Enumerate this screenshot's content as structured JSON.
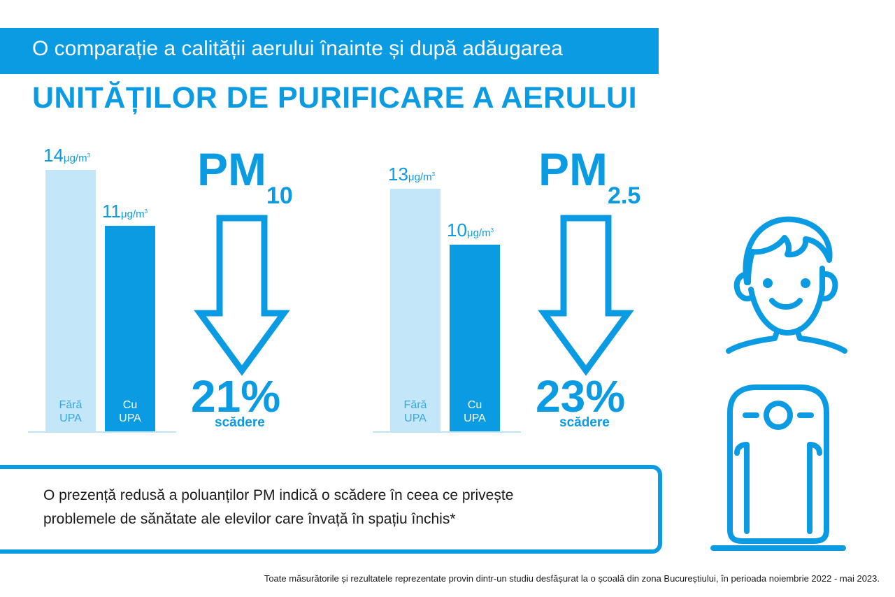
{
  "header": {
    "line1": "O comparație a calității aerului înainte și după adăugarea",
    "line2": "UNITĂȚILOR DE PURIFICARE A AERULUI"
  },
  "colors": {
    "accent": "#0b9be3",
    "light_bar": "#c3e6f8",
    "dark_bar": "#0b9be3"
  },
  "chart_data": [
    {
      "type": "bar",
      "pollutant": {
        "main": "PM",
        "sub": "10"
      },
      "categories": [
        "Fără UPA",
        "Cu UPA"
      ],
      "category_lines": [
        [
          "Fără",
          "UPA"
        ],
        [
          "Cu",
          "UPA"
        ]
      ],
      "values": [
        14,
        11
      ],
      "value_labels": [
        "14",
        "11"
      ],
      "unit": "μg/m",
      "unit_sup": "3",
      "reduction": "21%",
      "reduction_label": "scădere"
    },
    {
      "type": "bar",
      "pollutant": {
        "main": "PM",
        "sub": "2.5"
      },
      "categories": [
        "Fără UPA",
        "Cu UPA"
      ],
      "category_lines": [
        [
          "Fără",
          "UPA"
        ],
        [
          "Cu",
          "UPA"
        ]
      ],
      "values": [
        13,
        10
      ],
      "value_labels": [
        "13",
        "10"
      ],
      "unit": "μg/m",
      "unit_sup": "3",
      "reduction": "23%",
      "reduction_label": "scădere"
    }
  ],
  "note": {
    "line1": "O prezență redusă a poluanților PM indică o scădere în ceea ce privește",
    "line2": "problemele de sănătate ale elevilor care învață în spațiu închis*"
  },
  "footnote": "Toate măsurătorile și rezultatele reprezentate provin dintr-un studiu desfășurat la o școală din zona Bucureștiului, în perioada noiembrie 2022 - mai 2023.",
  "icons": [
    "child-face-icon",
    "air-purifier-icon",
    "down-arrow-icon"
  ]
}
